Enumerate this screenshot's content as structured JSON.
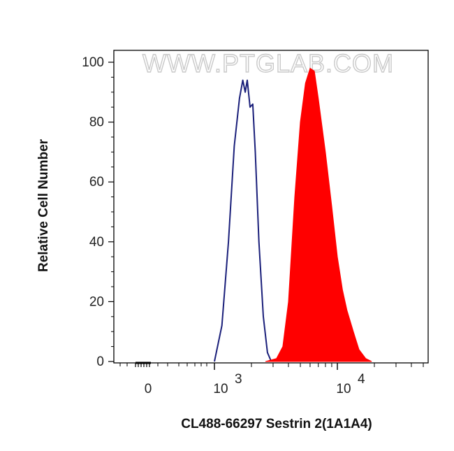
{
  "chart_data": {
    "type": "area",
    "title": "",
    "xlabel": "CL488-66297 Sestrin 2(1A1A4)",
    "ylabel": "Relative Cell Number",
    "x_scale": "biexponential (log-like)",
    "ylim": [
      0,
      100
    ],
    "y_ticks": [
      "0",
      "20",
      "40",
      "60",
      "80",
      "100"
    ],
    "x_tick_labels": [
      {
        "base": "0",
        "exp": ""
      },
      {
        "base": "10",
        "exp": "3"
      },
      {
        "base": "10",
        "exp": "4"
      }
    ],
    "watermark": "WWW.PTGLAB.COM",
    "grid": false,
    "legend": "none",
    "series": [
      {
        "style": "outline",
        "color": "#1a1f7a",
        "points": [
          [
            1000,
            0
          ],
          [
            1150,
            12
          ],
          [
            1300,
            40
          ],
          [
            1450,
            72
          ],
          [
            1600,
            88
          ],
          [
            1700,
            94
          ],
          [
            1780,
            90
          ],
          [
            1850,
            94
          ],
          [
            1950,
            85
          ],
          [
            2050,
            86
          ],
          [
            2150,
            70
          ],
          [
            2300,
            40
          ],
          [
            2500,
            15
          ],
          [
            2700,
            3
          ],
          [
            2900,
            0
          ]
        ]
      },
      {
        "style": "filled",
        "color": "#ff0000",
        "points": [
          [
            2600,
            0
          ],
          [
            3200,
            1
          ],
          [
            3600,
            5
          ],
          [
            4000,
            20
          ],
          [
            4500,
            55
          ],
          [
            5000,
            80
          ],
          [
            5500,
            93
          ],
          [
            6000,
            98
          ],
          [
            6500,
            97
          ],
          [
            7000,
            88
          ],
          [
            8000,
            70
          ],
          [
            9000,
            52
          ],
          [
            10000,
            35
          ],
          [
            11000,
            24
          ],
          [
            12000,
            17
          ],
          [
            13500,
            10
          ],
          [
            15000,
            4
          ],
          [
            17000,
            1
          ],
          [
            19000,
            0
          ]
        ]
      }
    ]
  }
}
